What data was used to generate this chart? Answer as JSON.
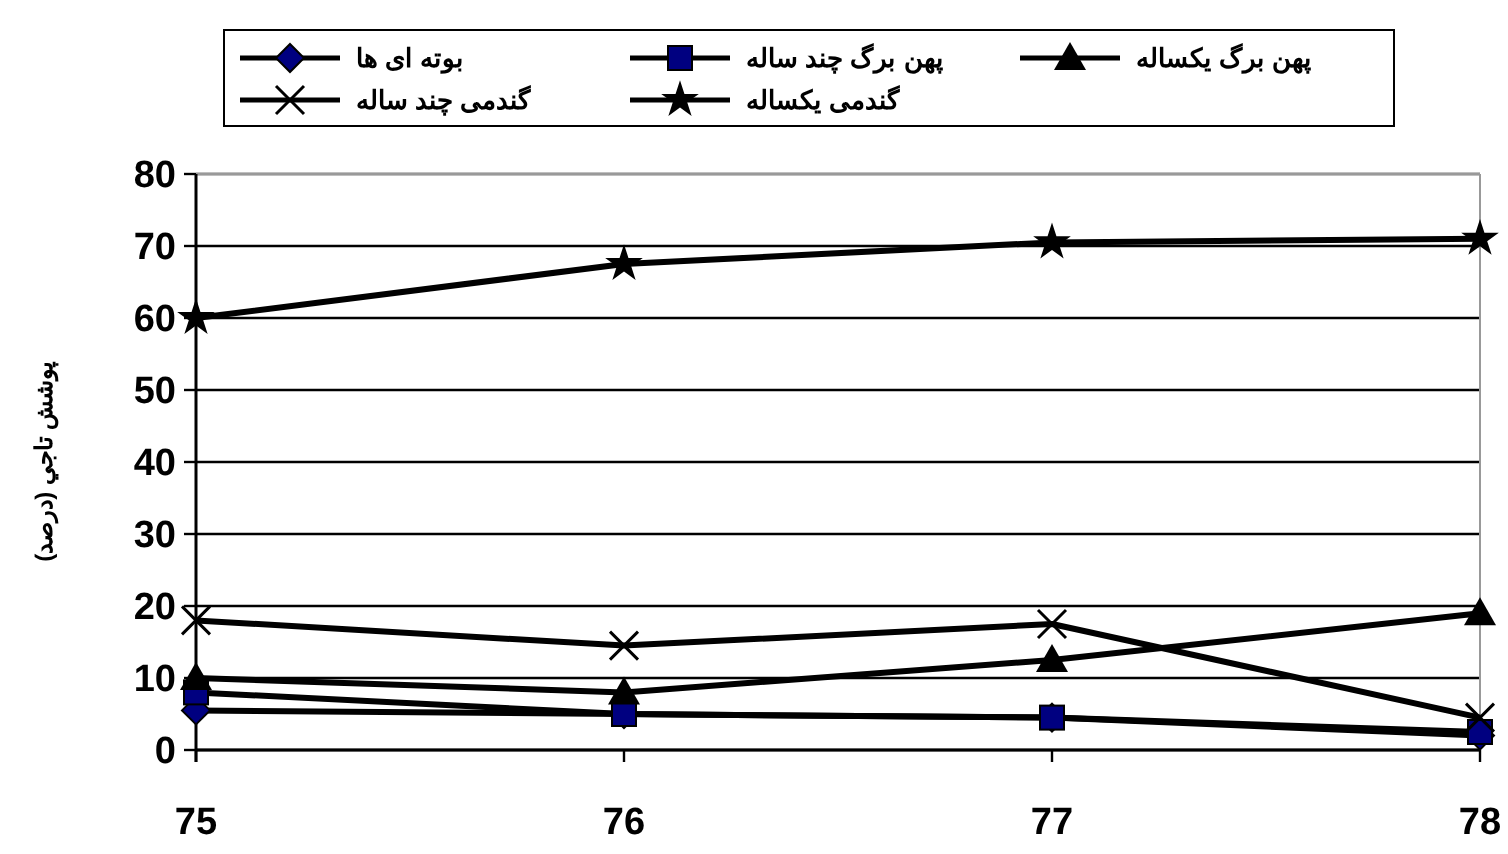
{
  "chart_data": {
    "type": "line",
    "ylabel": "پوشش تاجي (درصد)",
    "categories": [
      "75",
      "76",
      "77",
      "78"
    ],
    "series": [
      {
        "name": "بوته ای ها",
        "color": "#000080",
        "marker": "diamond",
        "values": [
          5.5,
          5,
          4.5,
          2
        ]
      },
      {
        "name": "پهن برگ چند ساله",
        "color": "#000080",
        "marker": "square",
        "values": [
          8,
          5,
          4.5,
          2.5
        ]
      },
      {
        "name": "پهن برگ یکساله",
        "color": "#000000",
        "marker": "triangle",
        "values": [
          10,
          8,
          12.5,
          19
        ]
      },
      {
        "name": "گندمی چند ساله",
        "color": "#000000",
        "marker": "cross",
        "values": [
          18,
          14.5,
          17.5,
          4.5
        ]
      },
      {
        "name": "گندمی یکساله",
        "color": "#000000",
        "marker": "star",
        "values": [
          60,
          67.5,
          70.5,
          71
        ]
      }
    ],
    "ylim": [
      0,
      80
    ],
    "yticks": [
      0,
      10,
      20,
      30,
      40,
      50,
      60,
      70,
      80
    ],
    "grid": "y",
    "legend": "top",
    "line_style": "solid"
  }
}
